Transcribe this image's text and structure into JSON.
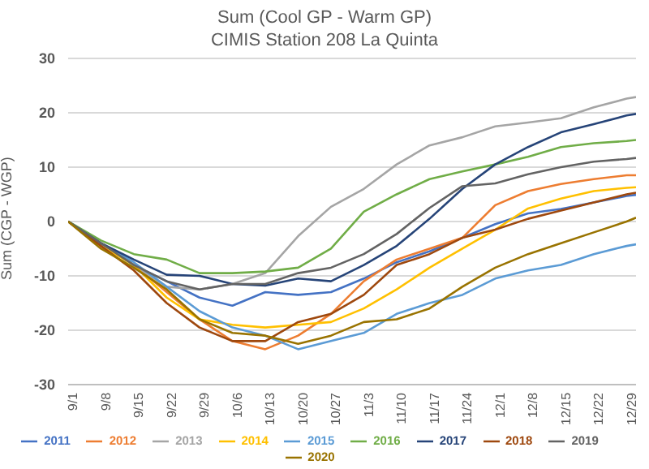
{
  "chart_data": {
    "type": "line",
    "title": "Sum (Cool GP - Warm GP)",
    "subtitle": "CIMIS Station 208 La Quinta",
    "ylabel": "Sum (CGP - WGP)",
    "x": [
      "--09-01",
      "--09-08",
      "--09-15",
      "--09-22",
      "--09-29",
      "--10-06",
      "--10-13",
      "--10-20",
      "--10-27",
      "--11-03",
      "--11-10",
      "--11-17",
      "--11-24",
      "--12-01",
      "--12-08",
      "--12-15",
      "--12-22",
      "--12-29",
      "--12-31"
    ],
    "xlim": [
      "--09-01",
      "--12-31"
    ],
    "xticks": [
      {
        "value": "--09-01",
        "label": "9/1"
      },
      {
        "value": "--09-08",
        "label": "9/8"
      },
      {
        "value": "--09-15",
        "label": "9/15"
      },
      {
        "value": "--09-22",
        "label": "9/22"
      },
      {
        "value": "--09-29",
        "label": "9/29"
      },
      {
        "value": "--10-06",
        "label": "10/6"
      },
      {
        "value": "--10-13",
        "label": "10/13"
      },
      {
        "value": "--10-20",
        "label": "10/20"
      },
      {
        "value": "--10-27",
        "label": "10/27"
      },
      {
        "value": "--11-03",
        "label": "11/3"
      },
      {
        "value": "--11-10",
        "label": "11/10"
      },
      {
        "value": "--11-17",
        "label": "11/17"
      },
      {
        "value": "--11-24",
        "label": "11/24"
      },
      {
        "value": "--12-01",
        "label": "12/1"
      },
      {
        "value": "--12-08",
        "label": "12/8"
      },
      {
        "value": "--12-15",
        "label": "12/15"
      },
      {
        "value": "--12-22",
        "label": "12/22"
      },
      {
        "value": "--12-29",
        "label": "12/29"
      }
    ],
    "ylim": [
      -30,
      30
    ],
    "yticks": [
      -30,
      -20,
      -10,
      0,
      10,
      20,
      30
    ],
    "grid": "y",
    "legend": "bottom",
    "marker": "none",
    "line_style": "solid",
    "series": [
      {
        "name": "2011",
        "color": "#4472c4",
        "values": [
          0,
          -4,
          -8,
          -11,
          -14,
          -15.5,
          -13,
          -13.5,
          -13,
          -10.5,
          -7.5,
          -5.5,
          -3,
          -0.5,
          1.5,
          2.3,
          3.5,
          4.7,
          4.9
        ]
      },
      {
        "name": "2012",
        "color": "#ed7d31",
        "values": [
          0,
          -4,
          -8,
          -13,
          -18,
          -22,
          -23.5,
          -21,
          -17,
          -11,
          -7,
          -5,
          -3,
          3,
          5.6,
          6.9,
          7.8,
          8.5,
          8.5
        ]
      },
      {
        "name": "2013",
        "color": "#a5a5a5",
        "values": [
          0,
          -4,
          -8,
          -12,
          -12.5,
          -11.5,
          -9.5,
          -2.7,
          2.7,
          6,
          10.5,
          14,
          15.5,
          17.5,
          18.2,
          19,
          21,
          22.6,
          22.9
        ]
      },
      {
        "name": "2014",
        "color": "#ffc000",
        "values": [
          0,
          -4.5,
          -8,
          -14,
          -18,
          -19,
          -19.5,
          -19,
          -18.5,
          -16,
          -12.5,
          -8.5,
          -5,
          -1.5,
          2.4,
          4.2,
          5.6,
          6.2,
          6.3
        ]
      },
      {
        "name": "2015",
        "color": "#5b9bd5",
        "values": [
          0,
          -4,
          -7.5,
          -12,
          -16.5,
          -19.5,
          -21,
          -23.5,
          -22,
          -20.5,
          -17,
          -15,
          -13.5,
          -10.5,
          -9,
          -8,
          -6,
          -4.5,
          -4.2
        ]
      },
      {
        "name": "2016",
        "color": "#70ad47",
        "values": [
          0,
          -3.5,
          -6,
          -7,
          -9.5,
          -9.5,
          -9.2,
          -8.5,
          -5,
          1.8,
          5,
          7.8,
          9.2,
          10.5,
          11.9,
          13.7,
          14.4,
          14.8,
          15
        ]
      },
      {
        "name": "2017",
        "color": "#264478",
        "values": [
          0,
          -4,
          -7,
          -9.8,
          -10,
          -11.5,
          -11.8,
          -10.5,
          -11,
          -8,
          -4.5,
          0.5,
          6,
          10.5,
          13.7,
          16.4,
          17.9,
          19.5,
          19.8
        ]
      },
      {
        "name": "2018",
        "color": "#9e480e",
        "values": [
          0,
          -4.5,
          -9,
          -15,
          -19.5,
          -22,
          -22,
          -18.5,
          -17,
          -13.5,
          -8,
          -6,
          -3,
          -1.5,
          0.5,
          2,
          3.5,
          5,
          5.3
        ]
      },
      {
        "name": "2019",
        "color": "#636363",
        "values": [
          0,
          -4,
          -8,
          -11,
          -12.5,
          -11.5,
          -11.5,
          -9.5,
          -8.5,
          -6,
          -2.3,
          2.5,
          6.5,
          7,
          8.7,
          10,
          11,
          11.5,
          11.7
        ]
      },
      {
        "name": "2020",
        "color": "#997300",
        "values": [
          0,
          -5,
          -8.5,
          -12.5,
          -18,
          -20.5,
          -21,
          -22.5,
          -21,
          -18.5,
          -18,
          -16,
          -12,
          -8.5,
          -6,
          -4,
          -2,
          0,
          0.7
        ]
      }
    ]
  }
}
